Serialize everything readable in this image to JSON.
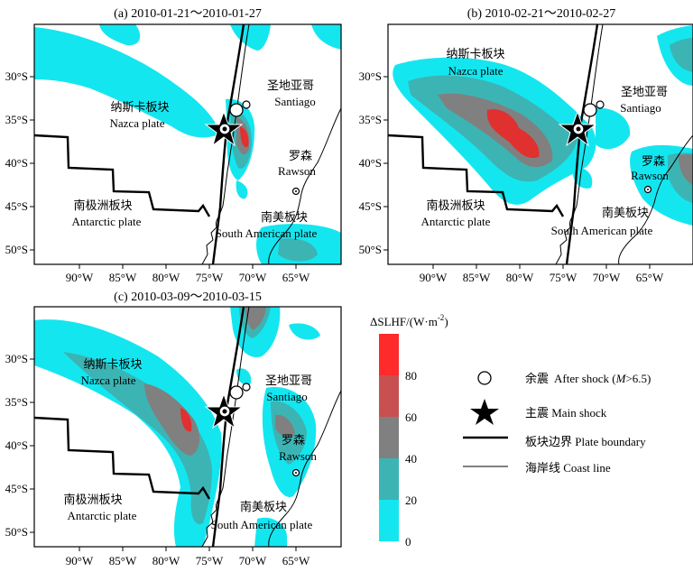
{
  "panels": [
    {
      "title": "(a)  2010-01-21～2010-01-27",
      "labels": {
        "nazca_cn": "纳斯卡板块",
        "nazca_en": "Nazca plate",
        "santiago_cn": "圣地亚哥",
        "santiago_en": "Santiago",
        "rawson_cn": "罗森",
        "rawson_en": "Rawson",
        "antarctic_cn": "南极洲板块",
        "antarctic_en": "Antarctic plate",
        "samerica_cn": "南美板块",
        "samerica_en": "South American plate"
      },
      "lat_ticks": [
        "30°S",
        "35°S",
        "40°S",
        "45°S",
        "50°S"
      ],
      "lon_ticks": [
        "90°W",
        "85°W",
        "80°W",
        "75°W",
        "70°W",
        "65°W"
      ]
    },
    {
      "title": "(b)  2010-02-21～2010-02-27",
      "labels": {
        "nazca_cn": "纳斯卡板块",
        "nazca_en": "Nazca plate",
        "santiago_cn": "圣地亚哥",
        "santiago_en": "Santiago",
        "rawson_cn": "罗森",
        "rawson_en": "Rawson",
        "antarctic_cn": "南极洲板块",
        "antarctic_en": "Antarctic plate",
        "samerica_cn": "南美板块",
        "samerica_en": "South American plate"
      },
      "lat_ticks": [
        "30°S",
        "35°S",
        "40°S",
        "45°S",
        "50°S"
      ],
      "lon_ticks": [
        "90°W",
        "85°W",
        "80°W",
        "75°W",
        "70°W",
        "65°W"
      ]
    },
    {
      "title": "(c)  2010-03-09～2010-03-15",
      "labels": {
        "nazca_cn": "纳斯卡板块",
        "nazca_en": "Nazca plate",
        "santiago_cn": "圣地亚哥",
        "santiago_en": "Santiago",
        "rawson_cn": "罗森",
        "rawson_en": "Rawson",
        "antarctic_cn": "南极洲板块",
        "antarctic_en": "Antarctic plate",
        "samerica_cn": "南美板块",
        "samerica_en": "South American plate"
      },
      "lat_ticks": [
        "30°S",
        "35°S",
        "40°S",
        "45°S",
        "50°S"
      ],
      "lon_ticks": [
        "90°W",
        "85°W",
        "80°W",
        "75°W",
        "70°W",
        "65°W"
      ]
    }
  ],
  "colorbar": {
    "title_main": "ΔSLHF/(W·m",
    "title_sup": "-2",
    "title_end": ")",
    "ticks": [
      "80",
      "60",
      "40",
      "20",
      "0"
    ],
    "colors": [
      "#ff2a2a",
      "#c85050",
      "#808080",
      "#3cb4b4",
      "#14e6f0"
    ]
  },
  "legend": {
    "after_shock_cn": "余震",
    "after_shock_en": "After shock (",
    "after_shock_m": "M",
    "after_shock_end": ">6.5)",
    "main_shock": "主震  Main shock",
    "plate_boundary": "板块边界  Plate boundary",
    "coast_line": "海岸线    Coast line"
  }
}
